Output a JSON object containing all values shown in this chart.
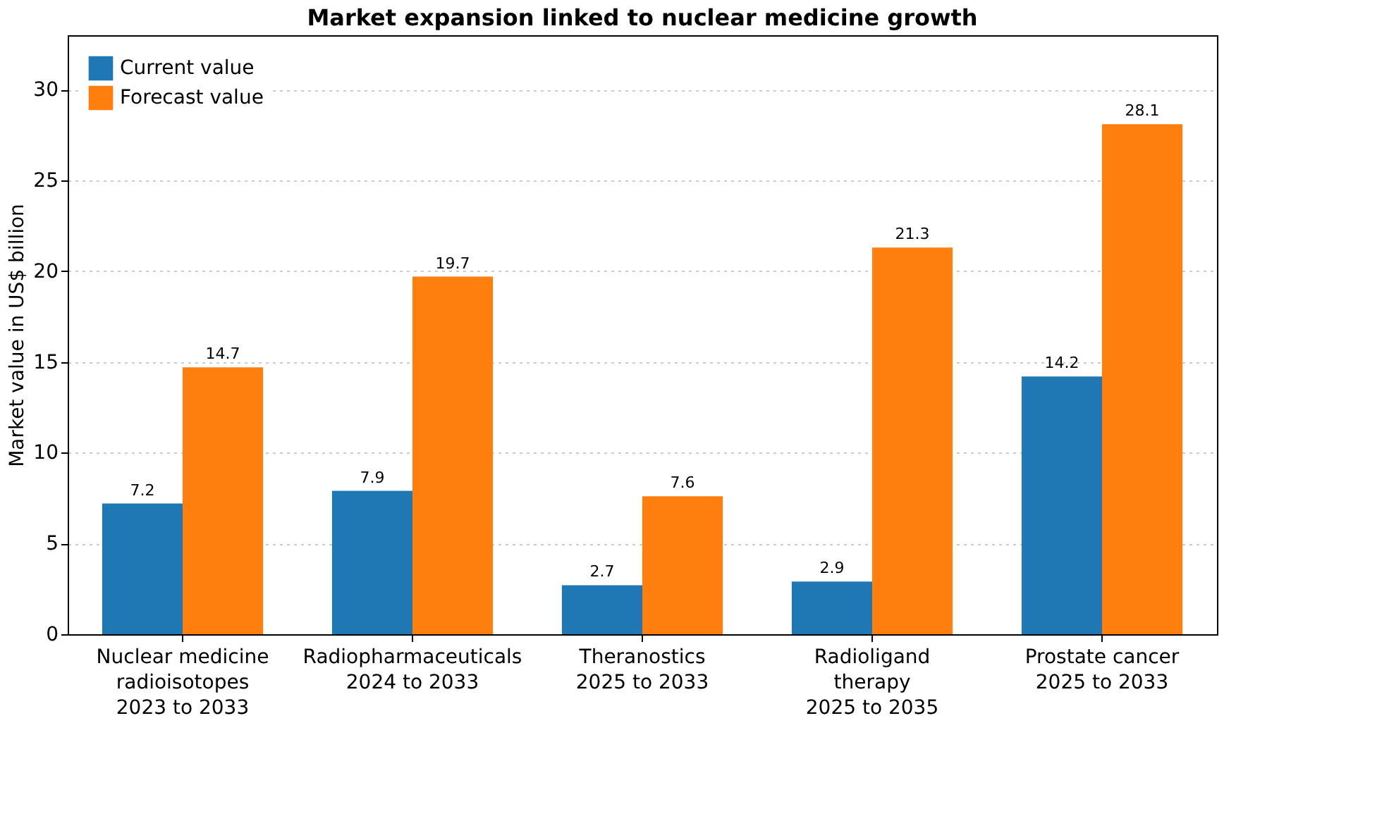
{
  "chart_data": {
    "type": "bar",
    "title": "Market expansion linked to nuclear medicine growth",
    "ylabel": "Market value in US$ billion",
    "categories": [
      "Nuclear medicine radioisotopes",
      "Radiopharmaceuticals",
      "Theranostics",
      "Radioligand therapy",
      "Prostate cancer"
    ],
    "series": [
      {
        "name": "Current value",
        "color": "#1f77b4",
        "values": [
          7.2,
          7.9,
          2.7,
          2.9,
          14.2
        ]
      },
      {
        "name": "Forecast value",
        "color": "#ff7f0e",
        "values": [
          14.7,
          19.7,
          7.6,
          21.3,
          28.1
        ]
      }
    ],
    "annotations": [
      "2023 to 2033",
      "2024 to 2033",
      "2025 to 2033",
      "2025 to 2035",
      "2025 to 2033"
    ],
    "ylim": [
      0,
      33
    ],
    "yticks": [
      0,
      5,
      10,
      15,
      20,
      25,
      30
    ],
    "grid": "y",
    "legend": "top left",
    "data_labels": true
  }
}
